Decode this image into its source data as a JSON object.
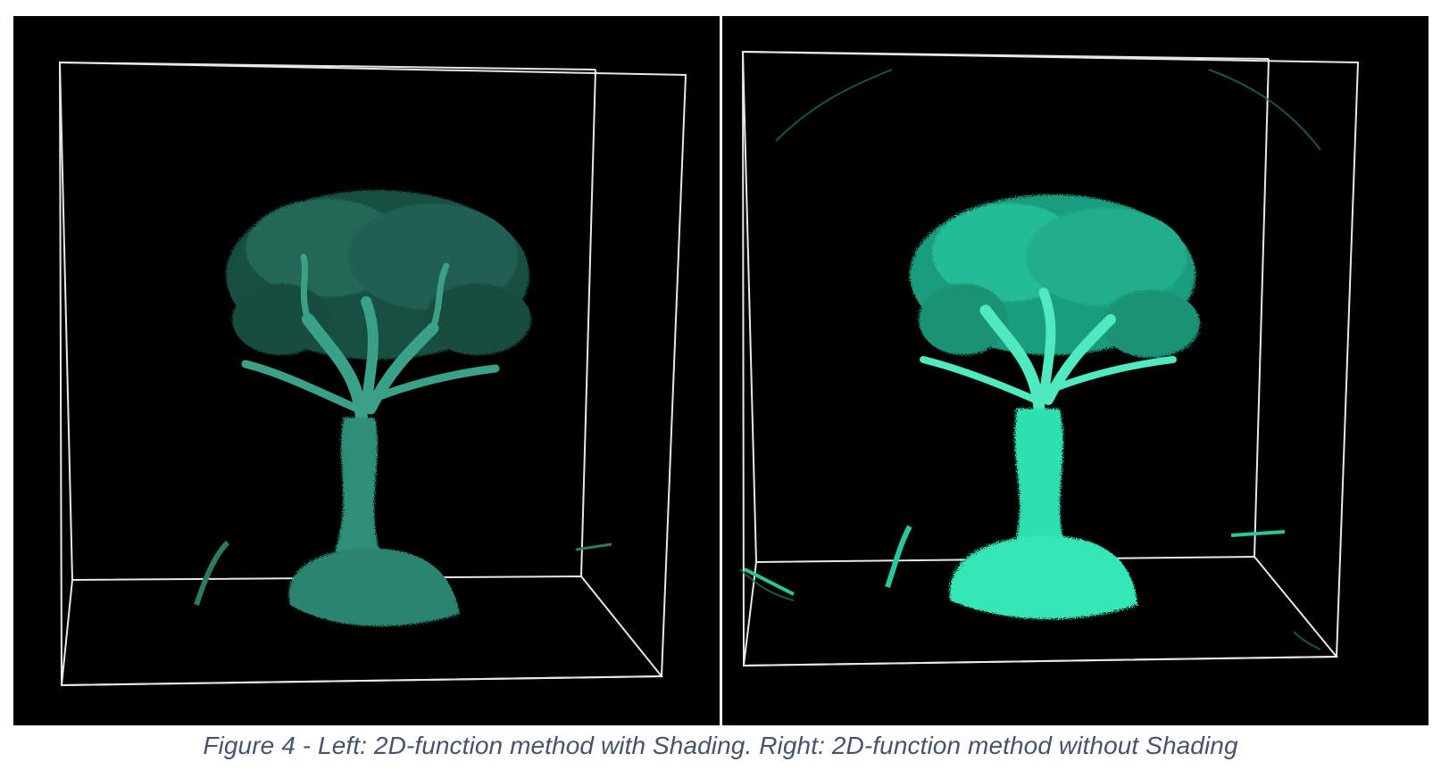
{
  "figure": {
    "caption": "Figure 4 - Left: 2D-function method with Shading. Right: 2D-function method without Shading",
    "panels": [
      {
        "id": "left",
        "description_subject": "volume-rendered bonsai tree with shading",
        "tree_color": "#2f8f78",
        "highlight_color": "#4fc2a4"
      },
      {
        "id": "right",
        "description_subject": "volume-rendered bonsai tree without shading",
        "tree_color": "#25d6a6",
        "highlight_color": "#5ff0c6"
      }
    ],
    "colors": {
      "background": "#000000",
      "bounding_box": "#e8e8e8",
      "caption": "#44546a"
    }
  }
}
